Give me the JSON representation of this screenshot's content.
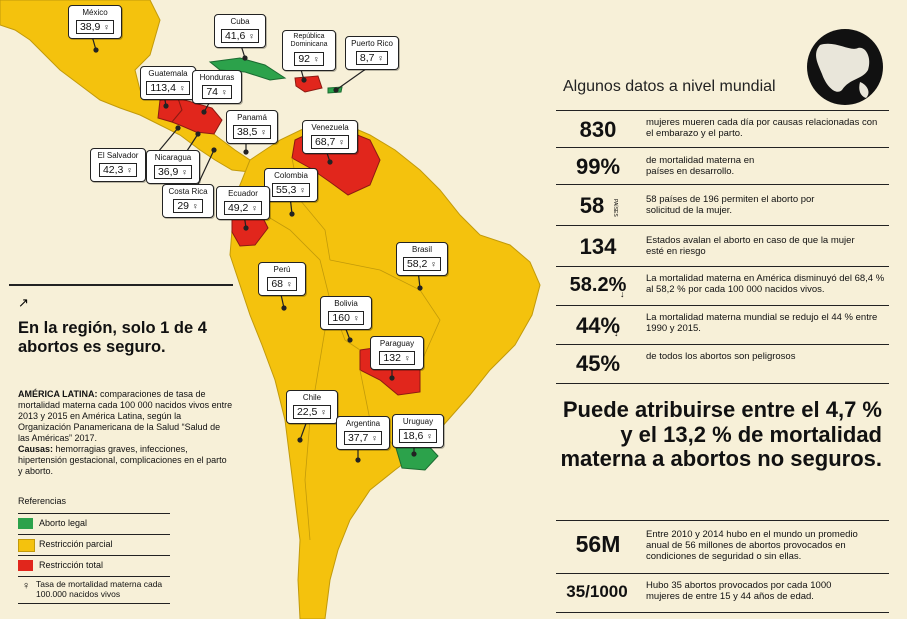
{
  "colors": {
    "background": "#f4c20d",
    "land": "#f4c20d",
    "legal": "#2ca24b",
    "partial": "#f4c20d",
    "total": "#e1261c",
    "border": "#c29a0a"
  },
  "countries": [
    {
      "name": "México",
      "value": "38,9"
    },
    {
      "name": "Cuba",
      "value": "41,6"
    },
    {
      "name": "República Dominicana",
      "value": "92"
    },
    {
      "name": "Puerto Rico",
      "value": "8,7"
    },
    {
      "name": "Guatemala",
      "value": "113,4"
    },
    {
      "name": "Honduras",
      "value": "74"
    },
    {
      "name": "Panamá",
      "value": "38,5"
    },
    {
      "name": "Venezuela",
      "value": "68,7"
    },
    {
      "name": "El Salvador",
      "value": "42,3"
    },
    {
      "name": "Nicaragua",
      "value": "36,9"
    },
    {
      "name": "Colombia",
      "value": "55,3"
    },
    {
      "name": "Costa Rica",
      "value": "29"
    },
    {
      "name": "Ecuador",
      "value": "49,2"
    },
    {
      "name": "Brasil",
      "value": "58,2"
    },
    {
      "name": "Perú",
      "value": "68"
    },
    {
      "name": "Bolivia",
      "value": "160"
    },
    {
      "name": "Paraguay",
      "value": "132"
    },
    {
      "name": "Chile",
      "value": "22,5"
    },
    {
      "name": "Argentina",
      "value": "37,7"
    },
    {
      "name": "Uruguay",
      "value": "18,6"
    }
  ],
  "world": {
    "title": "Algunos datos a nivel mundial",
    "stats": [
      {
        "big": "830",
        "unit": "",
        "text": "mujeres mueren cada día por causas relacionadas con el embarazo y el parto."
      },
      {
        "big": "99%",
        "unit": "",
        "text": "de mortalidad materna en países en desarrollo."
      },
      {
        "big": "58",
        "unit": "PAÍSES",
        "text": "58 países de 196 permiten el aborto por solicitud de la mujer."
      },
      {
        "big": "134",
        "unit": "",
        "text": "Estados avalan el aborto en caso de que la mujer esté en riesgo"
      },
      {
        "big": "58.2%",
        "unit": "↓",
        "text": "La mortalidad materna en América disminuyó del 68,4 % al 58,2 % por cada 100 000 nacidos vivos."
      },
      {
        "big": "44%",
        "unit": "↓",
        "text": "La mortalidad materna mundial se redujo el 44 % entre 1990 y 2015."
      },
      {
        "big": "45%",
        "unit": "",
        "text": "de todos los abortos son peligrosos"
      }
    ],
    "emphasis": "Puede atribuirse entre el 4,7 % y el 13,2 % de mortalidad materna a abortos no seguros.",
    "bottom_stats": [
      {
        "big": "56M",
        "text": "Entre 2010 y 2014 hubo en el mundo un promedio anual de 56 millones de abortos provocados en condiciones de seguridad o sin ellas."
      },
      {
        "big": "35/1000",
        "text": "Hubo 35 abortos provocados por cada 1000 mujeres de entre 15 y 44 años de edad."
      }
    ]
  },
  "region": {
    "arrow": "↗",
    "headline": "En la región, solo 1 de 4 abortos es seguro.",
    "label1": "AMÉRICA LATINA:",
    "text1": " comparaciones de tasa de mortalidad materna cada 100 000 nacidos vivos entre 2013 y 2015 en América Latina, según la Organización Panamericana de la Salud “Salud de las Américas” 2017.",
    "label2": "Causas:",
    "text2": " hemorragias graves, infecciones, hipertensión gestacional, complicaciones en el parto y aborto."
  },
  "legend": {
    "title": "Referencias",
    "items": [
      {
        "label": "Aborto legal",
        "color": "#2ca24b"
      },
      {
        "label": "Restricción parcial",
        "color": "#f4c20d"
      },
      {
        "label": "Restricción total",
        "color": "#e1261c"
      }
    ],
    "rate_label": "Tasa de mortalidad materna cada 100.000 nacidos vivos",
    "figure_icon": "woman-figure-icon"
  }
}
